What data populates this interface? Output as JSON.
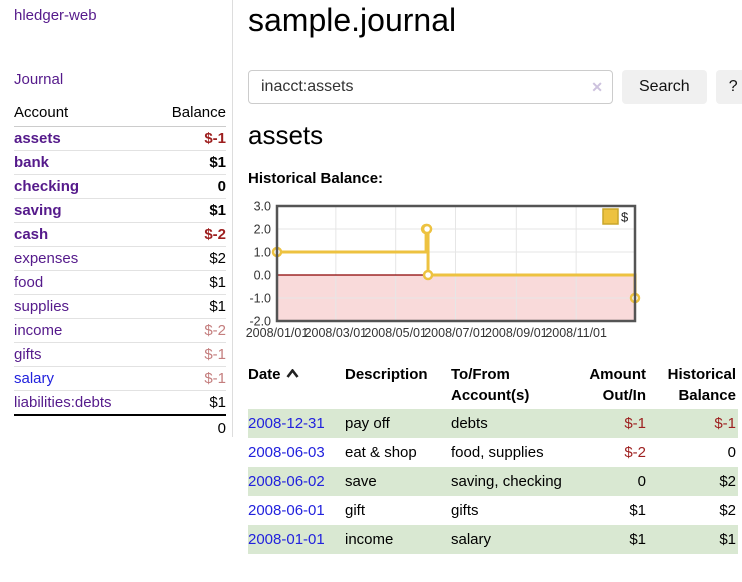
{
  "colors": {
    "purple": "#551a8b",
    "blue": "#2222dd",
    "negative": "#9d1f1f",
    "negative-muted": "#c47e7e",
    "row-green": "#d9e8d2",
    "line-gold": "#edc240",
    "zero-red": "#8b0000",
    "region-pink": "#f9dada",
    "chart-border": "#545454",
    "grid-gray": "#e6e6e6",
    "divider": "#dddddd",
    "btn-bg": "#f0f0f0",
    "input-border": "#cccccc",
    "clear-x": "#cdc2de"
  },
  "sidebar": {
    "brand": "hledger-web",
    "journal_link": "Journal",
    "accounts_table": {
      "headers": {
        "account": "Account",
        "balance": "Balance"
      },
      "rows": [
        {
          "name": "assets",
          "depth": 1,
          "bold": true,
          "balance": "$-1",
          "balance_style": "negative"
        },
        {
          "name": "bank",
          "depth": 2,
          "bold": true,
          "balance": "$1",
          "balance_style": "normal"
        },
        {
          "name": "checking",
          "depth": 3,
          "bold": true,
          "balance": "0",
          "balance_style": "normal"
        },
        {
          "name": "saving",
          "depth": 3,
          "bold": true,
          "balance": "$1",
          "balance_style": "normal"
        },
        {
          "name": "cash",
          "depth": 2,
          "bold": true,
          "balance": "$-2",
          "balance_style": "negative"
        },
        {
          "name": "expenses",
          "depth": 1,
          "bold": false,
          "balance": "$2",
          "balance_style": "normal"
        },
        {
          "name": "food",
          "depth": 2,
          "bold": false,
          "balance": "$1",
          "balance_style": "normal"
        },
        {
          "name": "supplies",
          "depth": 2,
          "bold": false,
          "balance": "$1",
          "balance_style": "normal"
        },
        {
          "name": "income",
          "depth": 1,
          "bold": false,
          "balance": "$-2",
          "balance_style": "negative-muted"
        },
        {
          "name": "gifts",
          "depth": 2,
          "bold": false,
          "balance": "$-1",
          "balance_style": "negative-muted"
        },
        {
          "name": "salary",
          "depth": 2,
          "bold": false,
          "balance": "$-1",
          "balance_style": "negative-muted",
          "link_style": "unvisited"
        },
        {
          "name": "liabilities:debts",
          "depth": 1,
          "bold": false,
          "balance": "$1",
          "balance_style": "normal"
        }
      ],
      "total": "0"
    }
  },
  "main": {
    "title": "sample.journal",
    "search": {
      "value": "inacct:assets",
      "clear_icon": "✕",
      "search_button": "Search",
      "help_button": "?"
    },
    "account_heading": "assets",
    "chart_title": "Historical Balance:",
    "register": {
      "headers": [
        "Date",
        "Description",
        "To/From Account(s)",
        "Amount Out/In",
        "Historical Balance"
      ],
      "sorted_by": "Date",
      "sort_direction": "ascending",
      "rows": [
        {
          "date": "2008-12-31",
          "description": "pay off",
          "accounts": "debts",
          "amount": "$-1",
          "amount_style": "negative",
          "balance": "$-1",
          "balance_style": "negative",
          "striped": true
        },
        {
          "date": "2008-06-03",
          "description": "eat & shop",
          "accounts": "food, supplies",
          "amount": "$-2",
          "amount_style": "negative",
          "balance": "0",
          "balance_style": "normal",
          "striped": false
        },
        {
          "date": "2008-06-02",
          "description": "save",
          "accounts": "saving, checking",
          "amount": "0",
          "amount_style": "normal",
          "balance": "$2",
          "balance_style": "normal",
          "striped": true
        },
        {
          "date": "2008-06-01",
          "description": "gift",
          "accounts": "gifts",
          "amount": "$1",
          "amount_style": "normal",
          "balance": "$2",
          "balance_style": "normal",
          "striped": false
        },
        {
          "date": "2008-01-01",
          "description": "income",
          "accounts": "salary",
          "amount": "$1",
          "amount_style": "normal",
          "balance": "$1",
          "balance_style": "normal",
          "striped": true
        }
      ]
    }
  },
  "chart_data": {
    "type": "line",
    "step": true,
    "title": "Historical Balance:",
    "series": [
      {
        "name": "$",
        "points": [
          {
            "date": "2008-01-01",
            "value": 1
          },
          {
            "date": "2008-06-01",
            "value": 2
          },
          {
            "date": "2008-06-02",
            "value": 2
          },
          {
            "date": "2008-06-03",
            "value": 0
          },
          {
            "date": "2008-12-31",
            "value": -1
          }
        ]
      }
    ],
    "x_tick_labels": [
      "2008/01/01",
      "2008/03/01",
      "2008/05/01",
      "2008/07/01",
      "2008/09/01",
      "2008/11/01"
    ],
    "y_tick_labels": [
      "3.0",
      "2.0",
      "1.0",
      "0.0",
      "-1.0",
      "-2.0"
    ],
    "y_ticks": [
      3,
      2,
      1,
      0,
      -1,
      -2
    ],
    "ylim": [
      -2,
      3
    ],
    "x_range": [
      "2008-01-01",
      "2008-12-31"
    ],
    "legend": {
      "label": "$",
      "position": "top-right"
    },
    "grid": true,
    "negative_region_shaded": true
  }
}
